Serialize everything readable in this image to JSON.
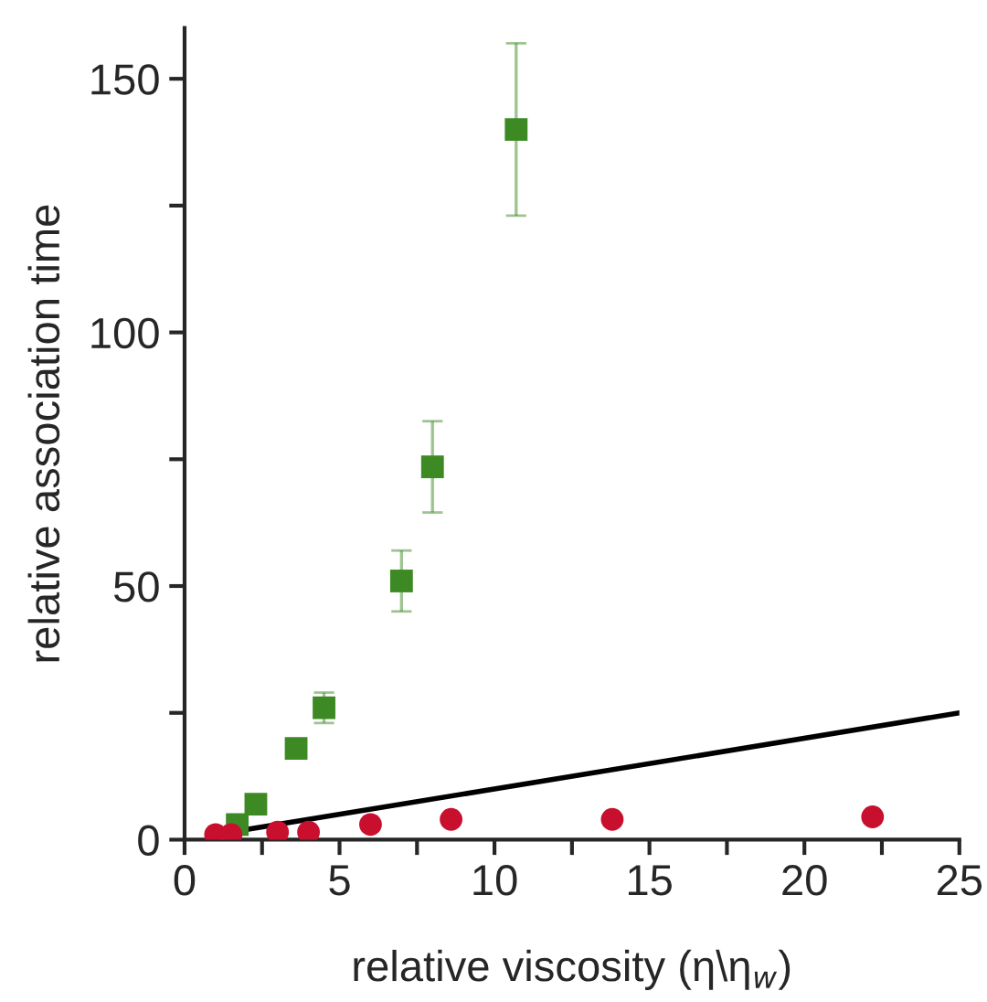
{
  "chart_data": {
    "type": "scatter",
    "xlabel": "relative viscosity (η\\η$_{w}$)",
    "ylabel": "relative association time",
    "xlim": [
      0,
      25
    ],
    "ylim": [
      0,
      160
    ],
    "xticks": [
      0,
      {
        "value": 2.5,
        "label": null
      },
      5,
      {
        "value": 7.5,
        "label": null
      },
      10,
      {
        "value": 12.5,
        "label": null
      },
      15,
      {
        "value": 17.5,
        "label": null
      },
      20,
      {
        "value": 22.5,
        "label": null
      },
      25
    ],
    "yticks": [
      0,
      {
        "value": 25,
        "label": null
      },
      50,
      {
        "value": 75,
        "label": null
      },
      100,
      {
        "value": 125,
        "label": null
      },
      150
    ],
    "grid": false,
    "legend": false,
    "series": [
      {
        "type": "line",
        "color": "#000000",
        "x": [
          1,
          25
        ],
        "values": [
          1,
          25
        ],
        "marker": "none",
        "line_style": "solid"
      },
      {
        "color": "#3d8a25",
        "marker": "square",
        "x": [
          1.7,
          2.3,
          3.6,
          4.5,
          7.0,
          8.0,
          10.7
        ],
        "values": [
          3,
          7,
          18,
          26,
          51,
          73.5,
          140
        ],
        "errors": [
          null,
          null,
          null,
          3,
          6,
          9,
          17
        ]
      },
      {
        "color": "#c8102e",
        "marker": "circle",
        "x": [
          1.0,
          1.5,
          3.0,
          4.0,
          6.0,
          8.6,
          13.8,
          22.2
        ],
        "values": [
          1,
          1,
          1.5,
          1.5,
          3,
          4,
          4,
          4.5
        ]
      }
    ]
  }
}
